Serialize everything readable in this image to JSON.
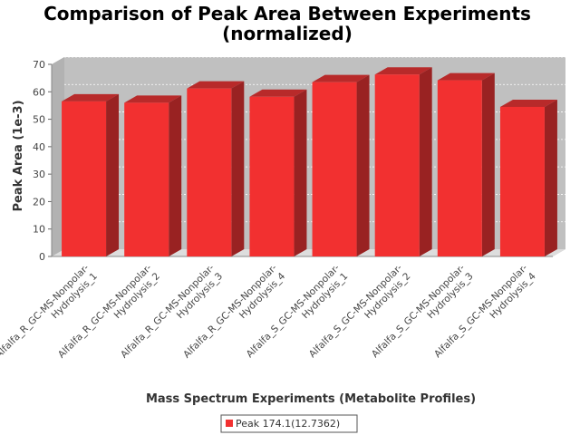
{
  "chart_data": {
    "type": "bar",
    "title_lines": [
      "Comparison of Peak Area Between Experiments",
      "(normalized)"
    ],
    "xlabel": "Mass Spectrum Experiments (Metabolite Profiles)",
    "ylabel": "Peak Area (1e-3)",
    "ylim": [
      0,
      70
    ],
    "yticks": [
      0,
      10,
      20,
      30,
      40,
      50,
      60,
      70
    ],
    "grid": true,
    "legend_position": "bottom",
    "categories": [
      [
        "Alfalfa_R_GC-MS-Nonpolar-",
        "Hydrolysis_1"
      ],
      [
        "Alfalfa_R_GC-MS-Nonpolar-",
        "Hydrolysis_2"
      ],
      [
        "Alfalfa_R_GC-MS-Nonpolar-",
        "Hydrolysis_3"
      ],
      [
        "Alfalfa_R_GC-MS-Nonpolar-",
        "Hydrolysis_4"
      ],
      [
        "Alfalfa_S_GC-MS-Nonpolar-",
        "Hydrolysis_1"
      ],
      [
        "Alfalfa_S_GC-MS-Nonpolar-",
        "Hydrolysis_2"
      ],
      [
        "Alfalfa_S_GC-MS-Nonpolar-",
        "Hydrolysis_3"
      ],
      [
        "Alfalfa_S_GC-MS-Nonpolar-",
        "Hydrolysis_4"
      ]
    ],
    "series": [
      {
        "name": "Peak 174.1(12.7362)",
        "color": "#f23030",
        "values": [
          56.5,
          56,
          61.2,
          58.2,
          63.5,
          66.3,
          64.2,
          54.5
        ]
      }
    ]
  }
}
